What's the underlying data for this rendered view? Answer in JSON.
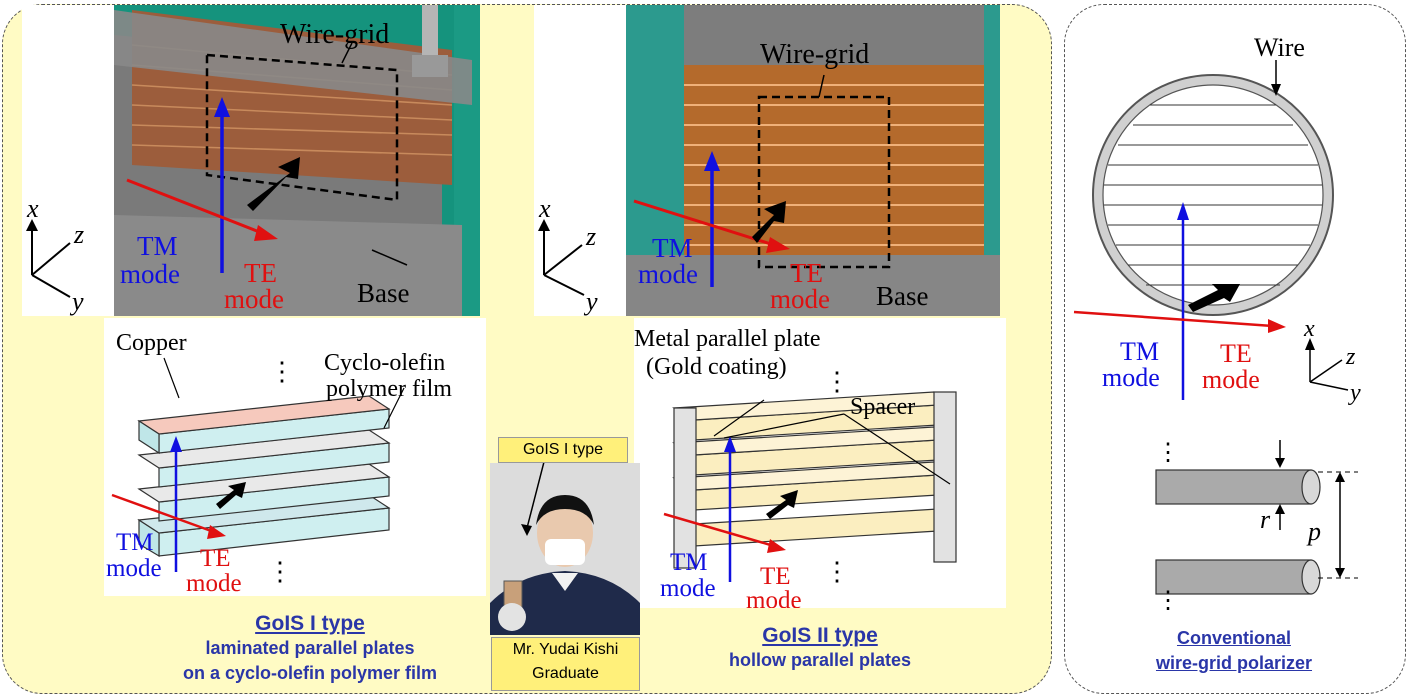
{
  "labels": {
    "wire_grid": "Wire-grid",
    "tm": "TM",
    "te": "TE",
    "mode": "mode",
    "base": "Base",
    "x": "x",
    "y": "y",
    "z": "z",
    "copper": "Copper",
    "cyclo1": "Cyclo-olefin",
    "cyclo2": "polymer film",
    "metal1": "Metal parallel plate",
    "metal2": "(Gold coating)",
    "spacer": "Spacer",
    "wire": "Wire",
    "dots": "⋮",
    "r": "r",
    "p": "p"
  },
  "captions": {
    "gois1_title": "GoIS I type",
    "gois1_line1": "laminated parallel plates",
    "gois1_line2": "on a cyclo-olefin polymer film",
    "gois2_title": "GoIS II type",
    "gois2_line1": "hollow parallel plates",
    "conv_line1": "Conventional",
    "conv_line2": "wire-grid polarizer"
  },
  "person": {
    "tag": "GoIS I type",
    "name": "Mr. Yudai Kishi",
    "role": "Graduate"
  },
  "colors": {
    "panel_bg": "#fffbc4",
    "caption_blue": "#2a36a8",
    "tm_blue": "#1010e0",
    "te_red": "#e01010",
    "copper_fill": "#f6c9bd",
    "gold_fill": "#fbeec0",
    "tag_yellow": "#fff07a"
  }
}
